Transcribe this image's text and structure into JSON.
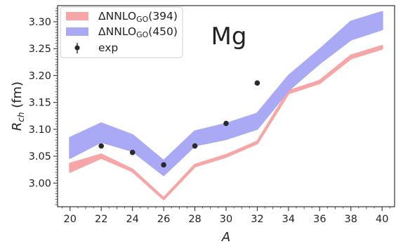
{
  "chart_data": {
    "type": "line",
    "annotation": "Mg",
    "xlabel": "A",
    "ylabel_main": "R",
    "ylabel_sub": "ch",
    "ylabel_unit": " (fm)",
    "xlim": [
      19.2,
      40.8
    ],
    "ylim": [
      2.956,
      3.33
    ],
    "xticks": [
      20,
      22,
      24,
      26,
      28,
      30,
      32,
      34,
      36,
      38,
      40
    ],
    "yticks": [
      3.0,
      3.05,
      3.1,
      3.15,
      3.2,
      3.25,
      3.3
    ],
    "ytick_labels": [
      "3.00",
      "3.05",
      "3.10",
      "3.15",
      "3.20",
      "3.25",
      "3.30"
    ],
    "grid": false,
    "legend_position": "top-left",
    "x": [
      20,
      22,
      24,
      26,
      28,
      30,
      32,
      34,
      36,
      38,
      40
    ],
    "series": [
      {
        "name": "ΔNNLO",
        "name_sub": "GO",
        "name_suffix": "(394)",
        "kind": "band",
        "color": "#f6a6a6",
        "lower": [
          3.021,
          3.047,
          3.022,
          2.97,
          3.031,
          3.049,
          3.074,
          3.167,
          3.186,
          3.232,
          3.25
        ],
        "upper": [
          3.036,
          3.053,
          3.025,
          2.972,
          3.034,
          3.052,
          3.077,
          3.171,
          3.19,
          3.237,
          3.255
        ]
      },
      {
        "name": "ΔNNLO",
        "name_sub": "GO",
        "name_suffix": "(450)",
        "kind": "band",
        "color": "#a9a9f5",
        "lower": [
          3.047,
          3.077,
          3.06,
          3.015,
          3.07,
          3.082,
          3.101,
          3.173,
          3.223,
          3.267,
          3.286
        ],
        "upper": [
          3.084,
          3.111,
          3.089,
          3.041,
          3.096,
          3.11,
          3.129,
          3.199,
          3.248,
          3.3,
          3.318
        ]
      },
      {
        "name": "exp",
        "kind": "points",
        "color": "#2b2b2b",
        "x": [
          22,
          24,
          26,
          28,
          30,
          32
        ],
        "y": [
          3.069,
          3.057,
          3.034,
          3.069,
          3.111,
          3.186
        ]
      }
    ]
  }
}
